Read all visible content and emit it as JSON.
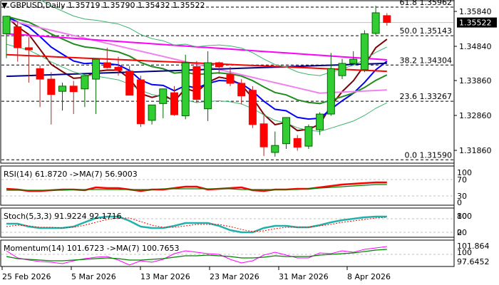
{
  "header": {
    "symbol": "GBPUSD,Daily",
    "ohlc": "1.35719 1.35790 1.35432 1.35522"
  },
  "colors": {
    "bull": "#32CD32",
    "bear": "#FF0000",
    "wick_bull": "#006400",
    "wick_bear": "#A52A2A",
    "ema_fast": "#800000",
    "ema_blue": "#0000FF",
    "sma_green": "#228B22",
    "sma_violet": "#EE82EE",
    "sma_magenta": "#FF00FF",
    "sma_navy": "#000080",
    "sma_red": "#FF0000",
    "bb": "#3CB371",
    "rsi": "#FF0000",
    "rsi_ma": "#008000",
    "stoch_main": "#20B2AA",
    "stoch_signal": "#FF0000",
    "momentum": "#FF00FF",
    "momentum_ma": "#008000",
    "price_tag_bg": "#000000"
  },
  "chart_data": {
    "type": "candlestick",
    "title": "GBPUSD,Daily 1.35719 1.35790 1.35432 1.35522",
    "price_axis": {
      "ticks": [
        1.3584,
        1.3484,
        1.3386,
        1.3286,
        1.3186
      ],
      "tick_labels": [
        "1.35840",
        "1.34840",
        "1.33860",
        "1.32860",
        "1.31860"
      ],
      "current_price": "1.35522"
    },
    "fibonacci": [
      {
        "level": "61.8",
        "price": "1.35962"
      },
      {
        "level": "50.0",
        "price": "1.35143"
      },
      {
        "level": "38.2",
        "price": "1.34304"
      },
      {
        "level": "23.6",
        "price": "1.33267"
      },
      {
        "level": "0.0",
        "price": "1.31590"
      }
    ],
    "x_labels": [
      "25 Feb 2026",
      "5 Mar 2026",
      "13 Mar 2026",
      "23 Mar 2026",
      "31 Mar 2026",
      "8 Apr 2026"
    ],
    "candles": [
      {
        "o": 1.352,
        "h": 1.356,
        "l": 1.345,
        "c": 1.357
      },
      {
        "o": 1.354,
        "h": 1.3555,
        "l": 1.344,
        "c": 1.348
      },
      {
        "o": 1.348,
        "h": 1.351,
        "l": 1.338,
        "c": 1.3474
      },
      {
        "o": 1.342,
        "h": 1.343,
        "l": 1.331,
        "c": 1.339
      },
      {
        "o": 1.339,
        "h": 1.341,
        "l": 1.326,
        "c": 1.3346
      },
      {
        "o": 1.3355,
        "h": 1.338,
        "l": 1.33,
        "c": 1.337
      },
      {
        "o": 1.337,
        "h": 1.3385,
        "l": 1.329,
        "c": 1.3354
      },
      {
        "o": 1.3362,
        "h": 1.339,
        "l": 1.331,
        "c": 1.34
      },
      {
        "o": 1.339,
        "h": 1.343,
        "l": 1.329,
        "c": 1.3447
      },
      {
        "o": 1.3437,
        "h": 1.348,
        "l": 1.342,
        "c": 1.3423
      },
      {
        "o": 1.3424,
        "h": 1.3454,
        "l": 1.34,
        "c": 1.3415
      },
      {
        "o": 1.3413,
        "h": 1.3428,
        "l": 1.3346,
        "c": 1.3344
      },
      {
        "o": 1.3388,
        "h": 1.34,
        "l": 1.3253,
        "c": 1.3262
      },
      {
        "o": 1.3272,
        "h": 1.331,
        "l": 1.326,
        "c": 1.3316
      },
      {
        "o": 1.332,
        "h": 1.3335,
        "l": 1.3278,
        "c": 1.3362
      },
      {
        "o": 1.3351,
        "h": 1.337,
        "l": 1.3285,
        "c": 1.3288
      },
      {
        "o": 1.3285,
        "h": 1.346,
        "l": 1.3275,
        "c": 1.3437
      },
      {
        "o": 1.3426,
        "h": 1.3442,
        "l": 1.3322,
        "c": 1.3332
      },
      {
        "o": 1.3305,
        "h": 1.347,
        "l": 1.327,
        "c": 1.3437
      },
      {
        "o": 1.3437,
        "h": 1.344,
        "l": 1.3405,
        "c": 1.3425
      },
      {
        "o": 1.3403,
        "h": 1.3425,
        "l": 1.337,
        "c": 1.3378
      },
      {
        "o": 1.3378,
        "h": 1.339,
        "l": 1.3318,
        "c": 1.3342
      },
      {
        "o": 1.3358,
        "h": 1.337,
        "l": 1.325,
        "c": 1.326
      },
      {
        "o": 1.3262,
        "h": 1.329,
        "l": 1.317,
        "c": 1.3196
      },
      {
        "o": 1.318,
        "h": 1.324,
        "l": 1.3168,
        "c": 1.32
      },
      {
        "o": 1.3205,
        "h": 1.328,
        "l": 1.319,
        "c": 1.328
      },
      {
        "o": 1.322,
        "h": 1.323,
        "l": 1.3185,
        "c": 1.3195
      },
      {
        "o": 1.3198,
        "h": 1.326,
        "l": 1.319,
        "c": 1.3254
      },
      {
        "o": 1.3245,
        "h": 1.3295,
        "l": 1.323,
        "c": 1.329
      },
      {
        "o": 1.329,
        "h": 1.3465,
        "l": 1.3285,
        "c": 1.342
      },
      {
        "o": 1.34,
        "h": 1.3448,
        "l": 1.339,
        "c": 1.3435
      },
      {
        "o": 1.3435,
        "h": 1.347,
        "l": 1.343,
        "c": 1.3447
      },
      {
        "o": 1.3417,
        "h": 1.353,
        "l": 1.341,
        "c": 1.352
      },
      {
        "o": 1.3521,
        "h": 1.36,
        "l": 1.3516,
        "c": 1.358
      },
      {
        "o": 1.35719,
        "h": 1.3579,
        "l": 1.35432,
        "c": 1.35522
      }
    ],
    "indicators": {
      "rsi": {
        "label": "RSI(14) 61.8720  ->MA(7) 56.9003",
        "levels": [
          "100",
          "70",
          "30",
          "0"
        ]
      },
      "stoch": {
        "label": "Stoch(5,3,3) 91.9224 92.1716",
        "levels": [
          "100",
          "80",
          "20",
          "0"
        ]
      },
      "momentum": {
        "label": "Momentum(14) 101.6723  ->MA(7) 100.7653",
        "levels": [
          "101.864",
          "100",
          "97.6452"
        ]
      }
    }
  }
}
